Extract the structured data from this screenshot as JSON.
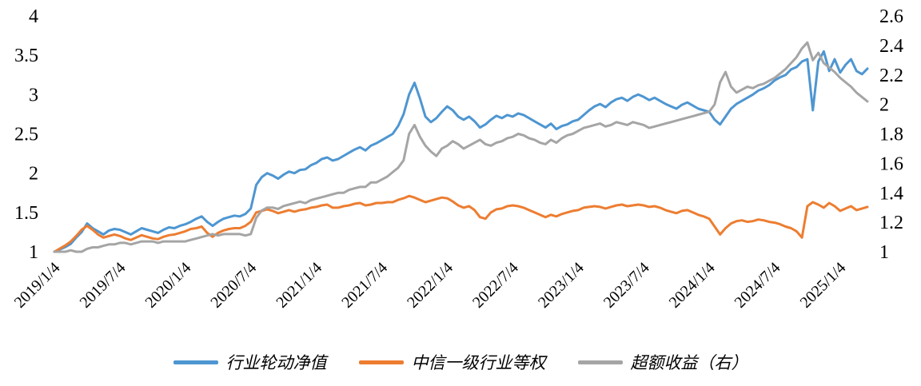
{
  "chart_data": {
    "type": "line",
    "title": "",
    "grid": false,
    "legend_position": "bottom",
    "left_axis": {
      "min": 1,
      "max": 4,
      "tick_labels": [
        "4",
        "3.5",
        "3",
        "2.5",
        "2",
        "1.5",
        "1"
      ]
    },
    "right_axis": {
      "min": 1,
      "max": 2.6,
      "tick_labels": [
        "2.6",
        "2.4",
        "2.2",
        "2",
        "1.8",
        "1.6",
        "1.4",
        "1.2",
        "1"
      ]
    },
    "x_tick_labels": [
      "2019/1/4",
      "2019/7/4",
      "2020/1/4",
      "2020/7/4",
      "2021/1/4",
      "2021/7/4",
      "2022/1/4",
      "2022/7/4",
      "2023/1/4",
      "2023/7/4",
      "2024/1/4",
      "2024/7/4",
      "2025/1/4"
    ],
    "x_tick_every": 12,
    "points_per_year": 24,
    "series": [
      {
        "name": "行业轮动净值",
        "axis": "left",
        "color": "#4E96D1",
        "values": [
          1.0,
          1.03,
          1.06,
          1.1,
          1.18,
          1.25,
          1.36,
          1.3,
          1.26,
          1.22,
          1.27,
          1.29,
          1.28,
          1.25,
          1.22,
          1.26,
          1.3,
          1.28,
          1.26,
          1.24,
          1.28,
          1.31,
          1.3,
          1.33,
          1.35,
          1.38,
          1.42,
          1.45,
          1.38,
          1.33,
          1.38,
          1.42,
          1.44,
          1.46,
          1.45,
          1.48,
          1.55,
          1.85,
          1.95,
          2.0,
          1.97,
          1.93,
          1.98,
          2.02,
          2.0,
          2.04,
          2.05,
          2.1,
          2.13,
          2.18,
          2.2,
          2.16,
          2.18,
          2.22,
          2.26,
          2.3,
          2.33,
          2.29,
          2.35,
          2.38,
          2.42,
          2.46,
          2.5,
          2.6,
          2.75,
          3.0,
          3.15,
          2.95,
          2.72,
          2.65,
          2.7,
          2.78,
          2.85,
          2.8,
          2.72,
          2.68,
          2.72,
          2.66,
          2.58,
          2.62,
          2.68,
          2.73,
          2.7,
          2.74,
          2.72,
          2.76,
          2.74,
          2.7,
          2.66,
          2.62,
          2.58,
          2.63,
          2.56,
          2.6,
          2.62,
          2.66,
          2.68,
          2.74,
          2.8,
          2.85,
          2.88,
          2.84,
          2.9,
          2.94,
          2.96,
          2.92,
          2.97,
          3.0,
          2.97,
          2.93,
          2.96,
          2.92,
          2.88,
          2.85,
          2.82,
          2.87,
          2.9,
          2.86,
          2.82,
          2.8,
          2.78,
          2.68,
          2.62,
          2.72,
          2.82,
          2.88,
          2.92,
          2.96,
          3.0,
          3.05,
          3.08,
          3.12,
          3.18,
          3.22,
          3.25,
          3.32,
          3.35,
          3.42,
          3.45,
          2.8,
          3.42,
          3.55,
          3.3,
          3.45,
          3.28,
          3.38,
          3.45,
          3.3,
          3.26,
          3.33
        ]
      },
      {
        "name": "中信一级行业等权",
        "axis": "left",
        "color": "#ED7D31",
        "values": [
          1.0,
          1.04,
          1.08,
          1.13,
          1.2,
          1.28,
          1.33,
          1.28,
          1.22,
          1.18,
          1.2,
          1.22,
          1.2,
          1.17,
          1.15,
          1.18,
          1.21,
          1.19,
          1.17,
          1.16,
          1.19,
          1.21,
          1.22,
          1.24,
          1.26,
          1.29,
          1.3,
          1.32,
          1.24,
          1.19,
          1.24,
          1.27,
          1.29,
          1.3,
          1.3,
          1.33,
          1.38,
          1.5,
          1.52,
          1.54,
          1.52,
          1.49,
          1.51,
          1.53,
          1.51,
          1.53,
          1.54,
          1.56,
          1.57,
          1.59,
          1.6,
          1.56,
          1.56,
          1.58,
          1.59,
          1.61,
          1.62,
          1.59,
          1.6,
          1.62,
          1.62,
          1.63,
          1.63,
          1.66,
          1.68,
          1.71,
          1.69,
          1.66,
          1.63,
          1.65,
          1.67,
          1.69,
          1.68,
          1.64,
          1.59,
          1.56,
          1.58,
          1.53,
          1.44,
          1.42,
          1.5,
          1.54,
          1.55,
          1.58,
          1.59,
          1.58,
          1.56,
          1.53,
          1.5,
          1.47,
          1.44,
          1.47,
          1.45,
          1.48,
          1.5,
          1.52,
          1.53,
          1.56,
          1.57,
          1.58,
          1.57,
          1.55,
          1.57,
          1.59,
          1.6,
          1.58,
          1.59,
          1.6,
          1.59,
          1.57,
          1.58,
          1.56,
          1.53,
          1.51,
          1.49,
          1.52,
          1.53,
          1.5,
          1.47,
          1.45,
          1.42,
          1.32,
          1.22,
          1.3,
          1.36,
          1.39,
          1.4,
          1.38,
          1.39,
          1.41,
          1.4,
          1.38,
          1.37,
          1.35,
          1.32,
          1.3,
          1.26,
          1.18,
          1.58,
          1.63,
          1.6,
          1.56,
          1.62,
          1.58,
          1.52,
          1.55,
          1.58,
          1.53,
          1.55,
          1.57
        ]
      },
      {
        "name": "超额收益（右）",
        "axis": "right",
        "color": "#A5A5A5",
        "values": [
          1.0,
          1.0,
          1.0,
          1.01,
          1.0,
          1.0,
          1.02,
          1.03,
          1.03,
          1.04,
          1.05,
          1.05,
          1.06,
          1.06,
          1.05,
          1.06,
          1.07,
          1.07,
          1.07,
          1.06,
          1.07,
          1.07,
          1.07,
          1.07,
          1.07,
          1.08,
          1.09,
          1.1,
          1.11,
          1.12,
          1.11,
          1.12,
          1.12,
          1.12,
          1.12,
          1.11,
          1.12,
          1.23,
          1.28,
          1.3,
          1.3,
          1.29,
          1.31,
          1.32,
          1.33,
          1.34,
          1.33,
          1.35,
          1.36,
          1.37,
          1.38,
          1.39,
          1.4,
          1.4,
          1.42,
          1.43,
          1.44,
          1.44,
          1.47,
          1.47,
          1.49,
          1.51,
          1.54,
          1.57,
          1.62,
          1.8,
          1.86,
          1.78,
          1.72,
          1.68,
          1.65,
          1.7,
          1.72,
          1.75,
          1.73,
          1.7,
          1.72,
          1.74,
          1.76,
          1.73,
          1.72,
          1.74,
          1.75,
          1.77,
          1.78,
          1.8,
          1.79,
          1.77,
          1.76,
          1.74,
          1.73,
          1.76,
          1.74,
          1.77,
          1.79,
          1.8,
          1.82,
          1.84,
          1.85,
          1.86,
          1.87,
          1.85,
          1.86,
          1.88,
          1.87,
          1.86,
          1.88,
          1.87,
          1.86,
          1.84,
          1.85,
          1.86,
          1.87,
          1.88,
          1.89,
          1.9,
          1.91,
          1.92,
          1.93,
          1.94,
          1.95,
          2.0,
          2.15,
          2.22,
          2.12,
          2.08,
          2.1,
          2.12,
          2.11,
          2.13,
          2.14,
          2.16,
          2.18,
          2.21,
          2.24,
          2.28,
          2.32,
          2.38,
          2.42,
          2.3,
          2.35,
          2.28,
          2.25,
          2.22,
          2.18,
          2.15,
          2.12,
          2.08,
          2.05,
          2.02
        ]
      }
    ]
  }
}
